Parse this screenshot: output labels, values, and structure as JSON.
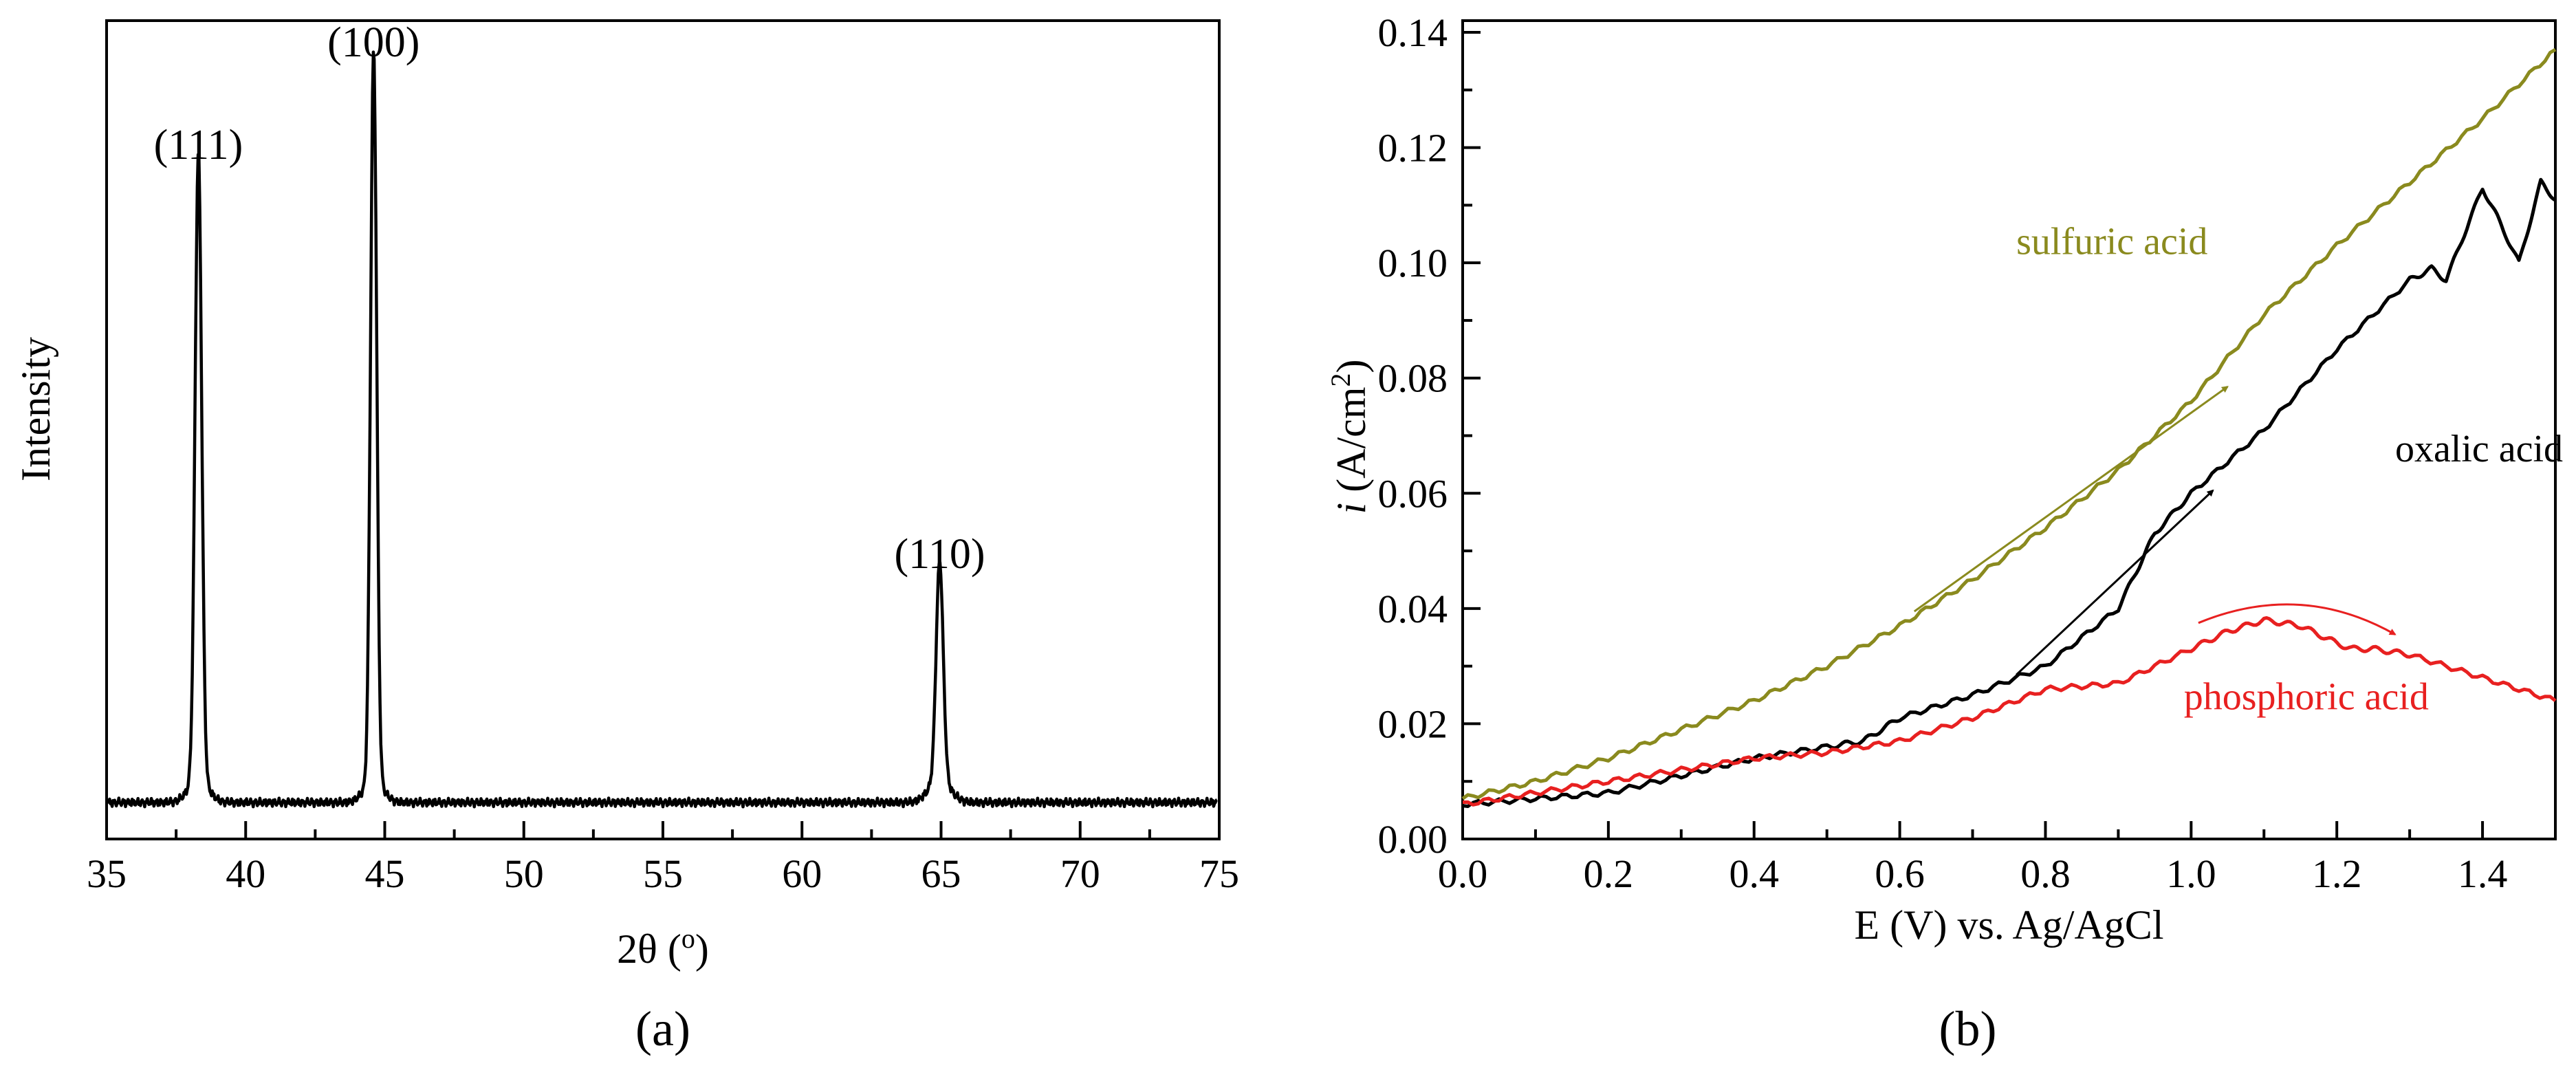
{
  "chart_data": [
    {
      "type": "line",
      "panel_label": "(a)",
      "title": "",
      "xlabel": "2θ (°)",
      "ylabel": "Intensity",
      "xlim": [
        35,
        75
      ],
      "x_ticks": [
        35,
        40,
        45,
        50,
        55,
        60,
        65,
        70,
        75
      ],
      "y_ticks_shown": false,
      "baseline": 0.05,
      "series": [
        {
          "color": "#000000",
          "peaks": [
            {
              "label": "(111)",
              "position": 38.3,
              "intensity": 0.86,
              "width": 0.28
            },
            {
              "label": "(100)",
              "position": 44.6,
              "intensity": 1.0,
              "width": 0.26
            },
            {
              "label": "(110)",
              "position": 64.95,
              "intensity": 0.3,
              "width": 0.3
            }
          ]
        }
      ],
      "grid": false
    },
    {
      "type": "line",
      "panel_label": "(b)",
      "title": "",
      "xlabel": "E (V) vs. Ag/AgCl",
      "ylabel": "i (A/cm2)",
      "xlim": [
        0.0,
        1.5
      ],
      "ylim": [
        0.0,
        0.14
      ],
      "x_ticks": [
        "0.0",
        "0.2",
        "0.4",
        "0.6",
        "0.8",
        "1.0",
        "1.2",
        "1.4"
      ],
      "y_ticks": [
        "0.00",
        "0.02",
        "0.04",
        "0.06",
        "0.08",
        "0.10",
        "0.12",
        "0.14"
      ],
      "grid": false,
      "series": [
        {
          "name": "sulfuric acid",
          "color": "#8a8a1e",
          "x": [
            0.0,
            0.1,
            0.2,
            0.3,
            0.4,
            0.5,
            0.6,
            0.7,
            0.8,
            0.9,
            1.0,
            1.1,
            1.2,
            1.3,
            1.4,
            1.5
          ],
          "y": [
            0.007,
            0.01,
            0.014,
            0.019,
            0.024,
            0.03,
            0.037,
            0.045,
            0.054,
            0.064,
            0.076,
            0.091,
            0.103,
            0.114,
            0.125,
            0.137
          ]
        },
        {
          "name": "oxalic acid",
          "color": "#000000",
          "x": [
            0.0,
            0.1,
            0.2,
            0.3,
            0.4,
            0.5,
            0.55,
            0.6,
            0.7,
            0.8,
            0.9,
            0.95,
            1.0,
            1.1,
            1.2,
            1.3,
            1.33,
            1.35,
            1.4,
            1.42,
            1.45,
            1.48,
            1.5
          ],
          "y": [
            0.006,
            0.007,
            0.008,
            0.011,
            0.014,
            0.016,
            0.017,
            0.021,
            0.025,
            0.03,
            0.04,
            0.053,
            0.06,
            0.071,
            0.085,
            0.097,
            0.099,
            0.097,
            0.113,
            0.108,
            0.1,
            0.114,
            0.111
          ]
        },
        {
          "name": "phosphoric acid",
          "color": "#e82020",
          "x": [
            0.0,
            0.1,
            0.2,
            0.3,
            0.4,
            0.5,
            0.6,
            0.7,
            0.8,
            0.9,
            1.0,
            1.05,
            1.1,
            1.15,
            1.2,
            1.22,
            1.25,
            1.3,
            1.4,
            1.5
          ],
          "y": [
            0.006,
            0.008,
            0.01,
            0.012,
            0.014,
            0.015,
            0.017,
            0.021,
            0.026,
            0.027,
            0.033,
            0.036,
            0.038,
            0.037,
            0.034,
            0.033,
            0.033,
            0.032,
            0.028,
            0.024
          ]
        }
      ],
      "annotations": [
        {
          "text": "sulfuric acid",
          "series": "sulfuric acid"
        },
        {
          "text": "oxalic acid",
          "series": "oxalic acid"
        },
        {
          "text": "phosphoric acid",
          "series": "phosphoric acid"
        }
      ]
    }
  ]
}
